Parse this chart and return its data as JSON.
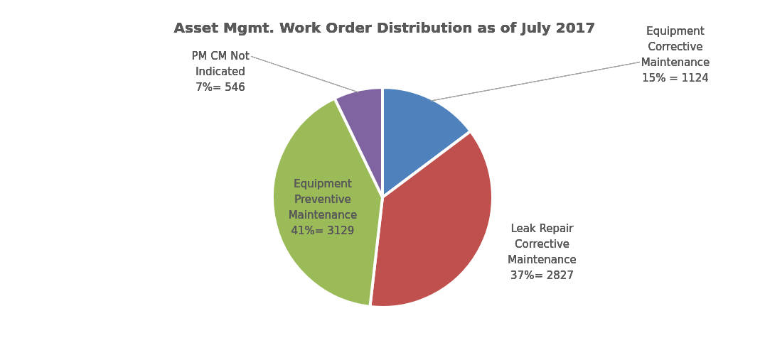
{
  "chart_data": {
    "type": "pie",
    "title": "Asset Mgmt. Work Order Distribution as of July 2017",
    "categories": [
      "Equipment Corrective Maintenance",
      "Leak Repair Corrective Maintenance",
      "Equipment Preventive Maintenance",
      "PM CM Not Indicated"
    ],
    "values": [
      1124,
      2827,
      3129,
      546
    ],
    "colors": [
      "#4f81bd",
      "#c0504d",
      "#9bbb59",
      "#8064a2"
    ],
    "value_labels": [
      "15% = 1124",
      "37%= 2827",
      "41%= 3129",
      "7%= 546"
    ]
  }
}
